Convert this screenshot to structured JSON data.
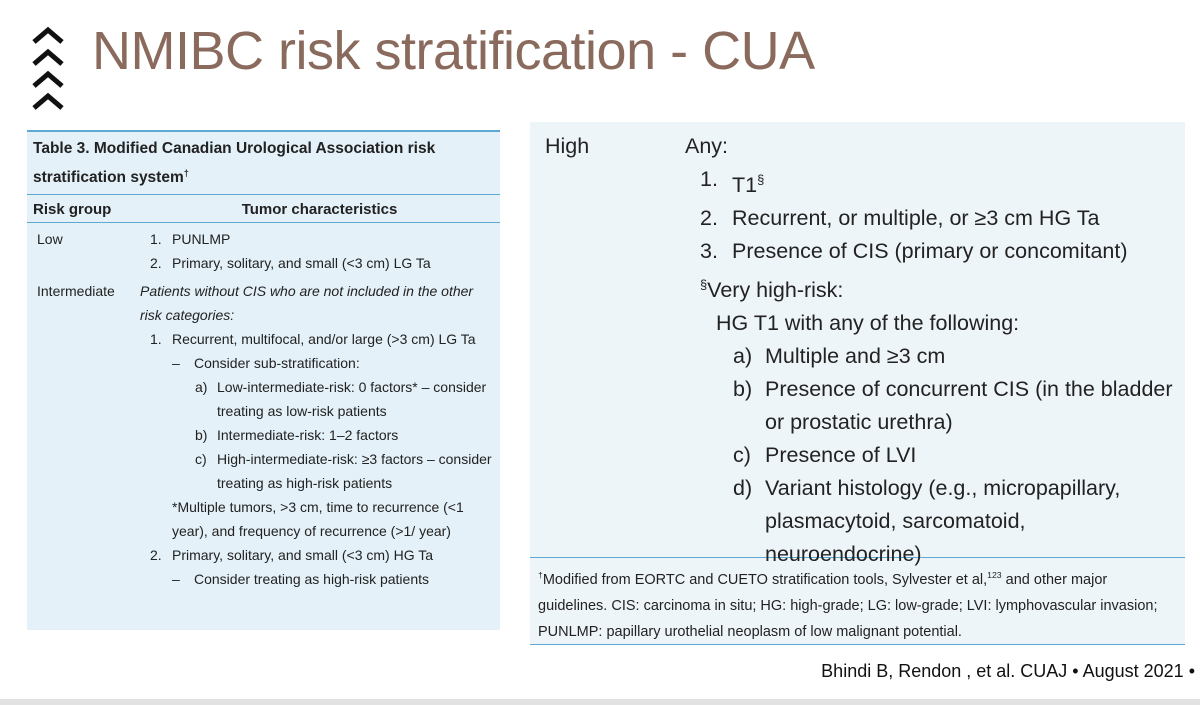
{
  "title": "NMIBC risk stratification - CUA",
  "left_table": {
    "caption": "Table 3. Modified Canadian Urological Association risk stratification system",
    "caption_sup": "†",
    "headers": [
      "Risk group",
      "Tumor characteristics"
    ],
    "low": {
      "group": "Low",
      "items": [
        {
          "marker": "1.",
          "text": "PUNLMP"
        },
        {
          "marker": "2.",
          "text": "Primary, solitary, and small (<3 cm) LG Ta"
        }
      ]
    },
    "intermediate": {
      "group": "Intermediate",
      "intro": "Patients without CIS who are not included in the other risk categories:",
      "items": [
        {
          "marker": "1.",
          "text": "Recurrent, multifocal, and/or large (>3 cm) LG Ta",
          "note_marker": "–",
          "note": "Consider sub-stratification:",
          "subitems": [
            {
              "marker": "a)",
              "text": "Low-intermediate-risk: 0 factors* – consider treating as low-risk patients"
            },
            {
              "marker": "b)",
              "text": "Intermediate-risk: 1–2 factors"
            },
            {
              "marker": "c)",
              "text": "High-intermediate-risk: ≥3 factors – consider treating as high-risk patients"
            }
          ],
          "footnote": "*Multiple tumors, >3 cm, time to recurrence (<1 year), and frequency of recurrence (>1/ year)"
        },
        {
          "marker": "2.",
          "text": "Primary, solitary, and small (<3 cm) HG Ta",
          "note_marker": "–",
          "note": "Consider treating as high-risk patients"
        }
      ]
    }
  },
  "right_table": {
    "group": "High",
    "intro": "Any:",
    "items": [
      {
        "marker": "1.",
        "text": "T1",
        "sup": "§"
      },
      {
        "marker": "2.",
        "text": "Recurrent, or multiple, or ≥3 cm HG Ta"
      },
      {
        "marker": "3.",
        "text": "Presence of CIS (primary or concomitant)"
      }
    ],
    "very_high": {
      "sup": "§",
      "label": "Very high-risk:",
      "intro": "HG T1 with any of the following:",
      "items": [
        {
          "marker": "a)",
          "text": "Multiple and ≥3 cm"
        },
        {
          "marker": "b)",
          "text": "Presence of concurrent CIS (in the bladder or prostatic urethra)"
        },
        {
          "marker": "c)",
          "text": "Presence of LVI"
        },
        {
          "marker": "d)",
          "text": "Variant histology (e.g., micropapillary, plasmacytoid, sarcomatoid, neuroendocrine)"
        }
      ]
    },
    "footnote": {
      "sup": "†",
      "text": "Modified from EORTC and CUETO stratification tools, Sylvester et al,",
      "ref": "123",
      "text2": " and other major guidelines. CIS: carcinoma in situ; HG: high-grade; LG: low-grade; LVI: lymphovascular invasion; PUNLMP: papillary urothelial neoplasm of low malignant potential."
    }
  },
  "citation": "Bhindi B, Rendon , et al. CUAJ • August 2021 •"
}
